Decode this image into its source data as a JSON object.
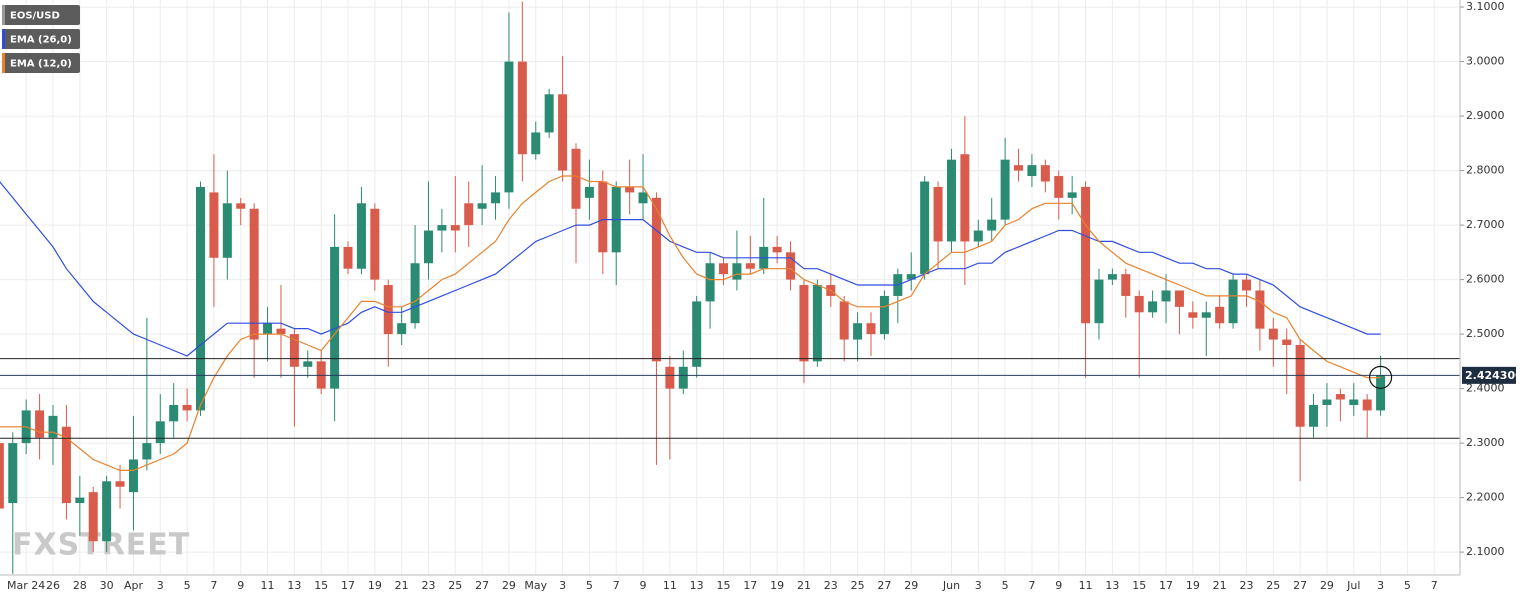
{
  "chart_data": {
    "type": "candlestick",
    "symbol": "EOS/USD",
    "watermark": "FXSTREET",
    "up_color": "#2b8a72",
    "down_color": "#d95b4b",
    "categories": [
      null,
      null,
      "Mar 24",
      null,
      "26",
      null,
      "28",
      null,
      "30",
      null,
      "Apr",
      null,
      "3",
      null,
      "5",
      null,
      "7",
      null,
      "9",
      null,
      "11",
      null,
      "13",
      null,
      "15",
      null,
      "17",
      null,
      "19",
      null,
      "21",
      null,
      "23",
      null,
      "25",
      null,
      "27",
      null,
      "29",
      null,
      "May",
      null,
      "3",
      null,
      "5",
      null,
      "7",
      null,
      "9",
      null,
      "11",
      null,
      "13",
      null,
      "15",
      null,
      "17",
      null,
      "19",
      null,
      "21",
      null,
      "23",
      null,
      "25",
      null,
      "27",
      null,
      "29",
      null,
      null,
      "Jun",
      null,
      "3",
      null,
      "5",
      null,
      "7",
      null,
      "9",
      null,
      "11",
      null,
      "13",
      null,
      "15",
      null,
      "17",
      null,
      "19",
      null,
      "21",
      null,
      "23",
      null,
      "25",
      null,
      "27",
      null,
      "29",
      null,
      "Jul",
      null,
      "3",
      null,
      "5",
      null,
      "7"
    ],
    "open": [
      2.3,
      2.19,
      2.3,
      2.36,
      2.31,
      2.33,
      2.19,
      2.21,
      2.12,
      2.23,
      2.21,
      2.27,
      2.3,
      2.34,
      2.37,
      2.36,
      2.76,
      2.64,
      2.74,
      2.73,
      2.5,
      2.51,
      2.5,
      2.44,
      2.45,
      2.4,
      2.66,
      2.62,
      2.73,
      2.59,
      2.5,
      2.52,
      2.63,
      2.69,
      2.7,
      2.74,
      2.73,
      2.74,
      2.76,
      3.0,
      2.83,
      2.87,
      2.94,
      2.84,
      2.75,
      2.78,
      2.65,
      2.77,
      2.74,
      2.75,
      2.44,
      2.4,
      2.44,
      2.56,
      2.63,
      2.6,
      2.63,
      2.62,
      2.66,
      2.65,
      2.59,
      2.45,
      2.59,
      2.56,
      2.49,
      2.52,
      2.5,
      2.57,
      2.6,
      2.61,
      2.77,
      2.67,
      2.83,
      2.67,
      2.69,
      2.71,
      2.81,
      2.79,
      2.81,
      2.79,
      2.75,
      2.77,
      2.52,
      2.6,
      2.61,
      2.57,
      2.54,
      2.56,
      2.58,
      2.54,
      2.53,
      2.55,
      2.52,
      2.6,
      2.58,
      2.51,
      2.49,
      2.48,
      2.33,
      2.37,
      2.39,
      2.37,
      2.38,
      2.36,
      null,
      null,
      null,
      null
    ],
    "high": [
      2.32,
      2.32,
      2.38,
      2.39,
      2.37,
      2.37,
      2.24,
      2.22,
      2.24,
      2.26,
      2.35,
      2.53,
      2.39,
      2.41,
      2.4,
      2.78,
      2.83,
      2.8,
      2.75,
      2.74,
      2.55,
      2.59,
      2.51,
      2.47,
      2.47,
      2.72,
      2.67,
      2.77,
      2.74,
      2.6,
      2.55,
      2.7,
      2.78,
      2.73,
      2.79,
      2.78,
      2.81,
      2.79,
      3.09,
      3.11,
      2.89,
      2.95,
      3.01,
      2.85,
      2.82,
      2.8,
      2.78,
      2.82,
      2.83,
      2.76,
      2.46,
      2.47,
      2.57,
      2.65,
      2.64,
      2.69,
      2.68,
      2.75,
      2.68,
      2.67,
      2.6,
      2.6,
      2.61,
      2.57,
      2.54,
      2.54,
      2.58,
      2.62,
      2.65,
      2.79,
      2.78,
      2.84,
      2.9,
      2.71,
      2.75,
      2.86,
      2.84,
      2.83,
      2.82,
      2.8,
      2.79,
      2.78,
      2.62,
      2.62,
      2.62,
      2.58,
      2.58,
      2.61,
      2.58,
      2.56,
      2.56,
      2.57,
      2.61,
      2.61,
      2.6,
      2.53,
      2.51,
      2.49,
      2.39,
      2.41,
      2.4,
      2.41,
      2.39,
      2.46,
      null,
      null,
      null,
      null
    ],
    "low": [
      2.17,
      2.06,
      2.28,
      2.27,
      2.26,
      2.16,
      2.13,
      2.1,
      2.1,
      2.18,
      2.14,
      2.25,
      2.28,
      2.31,
      2.34,
      2.35,
      2.55,
      2.6,
      2.7,
      2.42,
      2.45,
      2.42,
      2.33,
      2.42,
      2.39,
      2.34,
      2.61,
      2.61,
      2.58,
      2.44,
      2.48,
      2.51,
      2.6,
      2.65,
      2.65,
      2.66,
      2.7,
      2.71,
      2.73,
      2.78,
      2.82,
      2.86,
      2.78,
      2.63,
      2.71,
      2.61,
      2.59,
      2.72,
      2.71,
      2.26,
      2.27,
      2.39,
      2.42,
      2.51,
      2.59,
      2.58,
      2.61,
      2.61,
      2.63,
      2.58,
      2.41,
      2.44,
      2.55,
      2.45,
      2.45,
      2.46,
      2.49,
      2.52,
      2.58,
      2.6,
      2.62,
      2.65,
      2.59,
      2.66,
      2.67,
      2.7,
      2.78,
      2.77,
      2.76,
      2.71,
      2.72,
      2.42,
      2.49,
      2.59,
      2.53,
      2.42,
      2.53,
      2.52,
      2.5,
      2.51,
      2.46,
      2.51,
      2.51,
      2.55,
      2.47,
      2.44,
      2.39,
      2.23,
      2.31,
      2.33,
      2.34,
      2.35,
      2.31,
      2.35,
      null,
      null,
      null,
      null
    ],
    "close": [
      2.18,
      2.3,
      2.36,
      2.31,
      2.35,
      2.19,
      2.2,
      2.12,
      2.23,
      2.22,
      2.27,
      2.3,
      2.34,
      2.37,
      2.36,
      2.77,
      2.64,
      2.74,
      2.73,
      2.49,
      2.52,
      2.5,
      2.44,
      2.45,
      2.4,
      2.66,
      2.62,
      2.74,
      2.6,
      2.5,
      2.52,
      2.63,
      2.69,
      2.7,
      2.69,
      2.7,
      2.74,
      2.76,
      3.0,
      2.83,
      2.87,
      2.94,
      2.8,
      2.73,
      2.77,
      2.65,
      2.77,
      2.76,
      2.76,
      2.45,
      2.4,
      2.44,
      2.56,
      2.63,
      2.61,
      2.63,
      2.62,
      2.66,
      2.65,
      2.6,
      2.45,
      2.59,
      2.57,
      2.49,
      2.52,
      2.5,
      2.57,
      2.61,
      2.61,
      2.78,
      2.67,
      2.82,
      2.67,
      2.69,
      2.71,
      2.82,
      2.8,
      2.81,
      2.78,
      2.75,
      2.76,
      2.52,
      2.6,
      2.61,
      2.57,
      2.54,
      2.56,
      2.58,
      2.55,
      2.53,
      2.54,
      2.52,
      2.6,
      2.58,
      2.51,
      2.49,
      2.48,
      2.33,
      2.37,
      2.38,
      2.38,
      2.38,
      2.36,
      2.4243,
      null,
      null,
      null,
      null
    ],
    "series": [
      {
        "name": "EMA (26,0)",
        "color": "#2f4ee0",
        "values": [
          2.78,
          2.75,
          2.72,
          2.69,
          2.66,
          2.62,
          2.59,
          2.56,
          2.54,
          2.52,
          2.5,
          2.49,
          2.48,
          2.47,
          2.46,
          2.48,
          2.5,
          2.52,
          2.52,
          2.52,
          2.52,
          2.52,
          2.51,
          2.51,
          2.5,
          2.51,
          2.52,
          2.54,
          2.55,
          2.54,
          2.54,
          2.55,
          2.56,
          2.57,
          2.58,
          2.59,
          2.6,
          2.61,
          2.63,
          2.65,
          2.67,
          2.68,
          2.69,
          2.7,
          2.7,
          2.71,
          2.71,
          2.71,
          2.71,
          2.69,
          2.67,
          2.66,
          2.65,
          2.65,
          2.64,
          2.64,
          2.64,
          2.64,
          2.64,
          2.64,
          2.62,
          2.62,
          2.61,
          2.6,
          2.59,
          2.59,
          2.59,
          2.59,
          2.6,
          2.61,
          2.62,
          2.62,
          2.62,
          2.63,
          2.63,
          2.65,
          2.66,
          2.67,
          2.68,
          2.69,
          2.69,
          2.68,
          2.67,
          2.67,
          2.66,
          2.65,
          2.65,
          2.64,
          2.63,
          2.63,
          2.62,
          2.62,
          2.61,
          2.61,
          2.6,
          2.59,
          2.57,
          2.55,
          2.54,
          2.53,
          2.52,
          2.51,
          2.5,
          2.5,
          null,
          null,
          null,
          null
        ]
      },
      {
        "name": "EMA (12,0)",
        "color": "#e8822c",
        "values": [
          2.33,
          2.33,
          2.33,
          2.32,
          2.32,
          2.31,
          2.29,
          2.27,
          2.26,
          2.25,
          2.25,
          2.26,
          2.27,
          2.28,
          2.3,
          2.37,
          2.42,
          2.46,
          2.49,
          2.5,
          2.5,
          2.5,
          2.49,
          2.48,
          2.47,
          2.5,
          2.53,
          2.56,
          2.56,
          2.55,
          2.55,
          2.56,
          2.58,
          2.6,
          2.61,
          2.63,
          2.65,
          2.67,
          2.71,
          2.74,
          2.76,
          2.78,
          2.79,
          2.79,
          2.78,
          2.78,
          2.77,
          2.77,
          2.77,
          2.73,
          2.68,
          2.64,
          2.61,
          2.6,
          2.6,
          2.61,
          2.61,
          2.62,
          2.62,
          2.62,
          2.6,
          2.59,
          2.58,
          2.56,
          2.55,
          2.55,
          2.55,
          2.56,
          2.57,
          2.61,
          2.63,
          2.65,
          2.65,
          2.66,
          2.67,
          2.7,
          2.71,
          2.73,
          2.74,
          2.74,
          2.74,
          2.7,
          2.67,
          2.65,
          2.63,
          2.62,
          2.61,
          2.6,
          2.59,
          2.58,
          2.57,
          2.57,
          2.57,
          2.57,
          2.56,
          2.54,
          2.53,
          2.49,
          2.47,
          2.45,
          2.44,
          2.43,
          2.42,
          2.42,
          null,
          null,
          null,
          null
        ]
      }
    ],
    "levels": [
      2.455,
      2.309
    ],
    "current_price": {
      "value": 2.4243,
      "label": "2.424300"
    },
    "ylim": [
      2.058,
      3.113
    ],
    "yticks": [
      {
        "value": 2.1,
        "label": "2.1000"
      },
      {
        "value": 2.2,
        "label": "2.2000"
      },
      {
        "value": 2.3,
        "label": "2.3000"
      },
      {
        "value": 2.4,
        "label": "2.4000"
      },
      {
        "value": 2.5,
        "label": "2.5000"
      },
      {
        "value": 2.6,
        "label": "2.6000"
      },
      {
        "value": 2.7,
        "label": "2.7000"
      },
      {
        "value": 2.8,
        "label": "2.8000"
      },
      {
        "value": 2.9,
        "label": "2.9000"
      },
      {
        "value": 3.0,
        "label": "3.0000"
      },
      {
        "value": 3.1,
        "label": "3.1000"
      }
    ],
    "grid": true
  }
}
